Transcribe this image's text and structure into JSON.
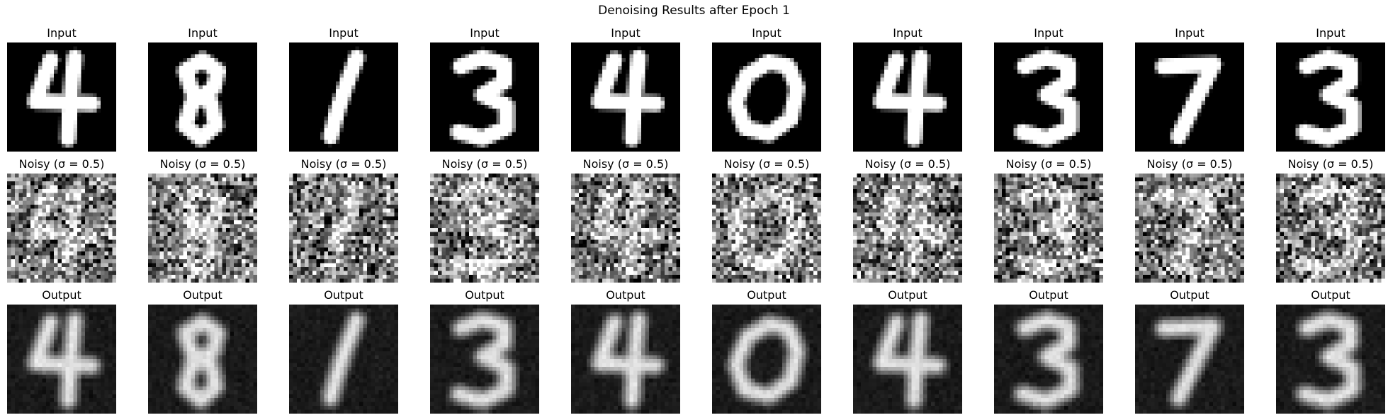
{
  "figure": {
    "title": "Denoising Results after Epoch 1"
  },
  "rows": [
    {
      "name": "input",
      "label": "Input"
    },
    {
      "name": "noisy",
      "label": "Noisy (σ = 0.5)"
    },
    {
      "name": "output",
      "label": "Output"
    }
  ],
  "digits": [
    4,
    8,
    1,
    3,
    4,
    0,
    4,
    3,
    7,
    3
  ],
  "colors": {
    "background": "#ffffff",
    "image_background": "#000000",
    "stroke": "#ffffff"
  }
}
